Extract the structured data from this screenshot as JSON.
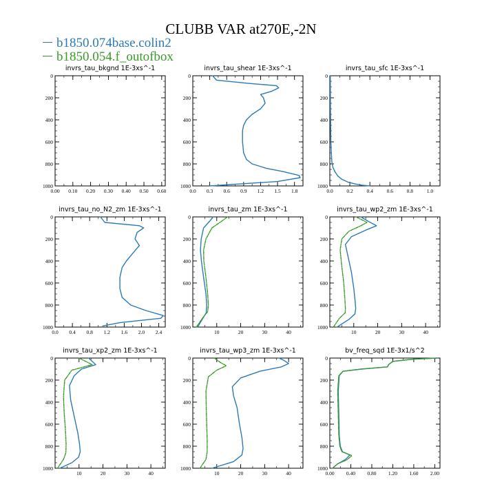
{
  "title": "CLUBB VAR at270E,-2N",
  "legend": [
    {
      "label": "b1850.074base.colin2",
      "color": "#2a7ab8"
    },
    {
      "label": "b1850.054.f_outofbox",
      "color": "#3a9a2a"
    }
  ],
  "chart_data": [
    {
      "type": "line",
      "title": "invrs_tau_bkgnd   1E-3xs^-1",
      "xlim": [
        0,
        0.62
      ],
      "ylim": [
        1000,
        0
      ],
      "xticks": [
        0,
        0.1,
        0.2,
        0.3,
        0.4,
        0.5,
        0.6
      ],
      "xtick_labels": [
        "0.00",
        "0.10",
        "0.20",
        "0.30",
        "0.40",
        "0.50",
        "0.60"
      ],
      "yticks": [
        0,
        200,
        400,
        600,
        800,
        1000
      ],
      "series": []
    },
    {
      "type": "line",
      "title": "invrs_tau_shear   1E-3xs^-1",
      "xlim": [
        0,
        1.95
      ],
      "ylim": [
        1000,
        0
      ],
      "xticks": [
        0,
        0.3,
        0.6,
        0.9,
        1.2,
        1.5,
        1.8
      ],
      "xtick_labels": [
        "0.0",
        "0.3",
        "0.6",
        "0.9",
        "1.2",
        "1.5",
        "1.8"
      ],
      "yticks": [
        0,
        200,
        400,
        600,
        800,
        1000
      ],
      "series": [
        {
          "color": "#2a7ab8",
          "x": [
            0.35,
            0.42,
            1.0,
            1.48,
            1.52,
            1.4,
            1.2,
            1.25,
            1.28,
            1.2,
            1.05,
            0.95,
            0.9,
            0.88,
            0.88,
            0.9,
            0.95,
            1.05,
            1.3,
            1.6,
            1.88,
            1.9,
            1.5,
            0.3
          ],
          "y": [
            0,
            40,
            70,
            90,
            110,
            140,
            170,
            200,
            250,
            300,
            350,
            400,
            450,
            500,
            600,
            700,
            760,
            800,
            840,
            870,
            905,
            925,
            960,
            1000
          ]
        }
      ]
    },
    {
      "type": "line",
      "title": "invrs_tau_sfc   1E-3xs^-1",
      "xlim": [
        0,
        1.1
      ],
      "ylim": [
        1000,
        0
      ],
      "xticks": [
        0,
        0.2,
        0.4,
        0.6,
        0.8,
        1.0
      ],
      "xtick_labels": [
        "0.0",
        "0.2",
        "0.4",
        "0.6",
        "0.8",
        "1.0"
      ],
      "yticks": [
        0,
        200,
        400,
        600,
        800,
        1000
      ],
      "series": [
        {
          "color": "#2a7ab8",
          "x": [
            0.005,
            0.006,
            0.008,
            0.01,
            0.015,
            0.02,
            0.03,
            0.05,
            0.08,
            0.12,
            0.18,
            0.25,
            0.32,
            0.4
          ],
          "y": [
            0,
            300,
            500,
            600,
            700,
            780,
            830,
            870,
            910,
            940,
            965,
            982,
            993,
            1000
          ]
        }
      ]
    },
    {
      "type": "line",
      "title": "invrs_tau_no_N2_zm   1E-3xs^-1",
      "xlim": [
        0,
        2.55
      ],
      "ylim": [
        1000,
        0
      ],
      "xticks": [
        0,
        0.4,
        0.8,
        1.2,
        1.6,
        2.0,
        2.4
      ],
      "xtick_labels": [
        "0.0",
        "0.4",
        "0.8",
        "1.2",
        "1.6",
        "2.0",
        "2.4"
      ],
      "yticks": [
        0,
        200,
        400,
        600,
        800,
        1000
      ],
      "series": [
        {
          "color": "#2a7ab8",
          "x": [
            1.05,
            1.15,
            1.95,
            2.05,
            1.9,
            1.85,
            1.95,
            1.8,
            1.65,
            1.55,
            1.5,
            1.5,
            1.55,
            1.75,
            2.1,
            2.5,
            2.45,
            1.5,
            1.1
          ],
          "y": [
            0,
            50,
            80,
            100,
            140,
            200,
            260,
            330,
            400,
            460,
            550,
            650,
            730,
            800,
            850,
            895,
            920,
            960,
            990
          ]
        }
      ]
    },
    {
      "type": "line",
      "title": "invrs_tau_zm   1E-3xs^-1",
      "xlim": [
        0,
        46
      ],
      "ylim": [
        1000,
        0
      ],
      "xticks": [
        0,
        10,
        20,
        30,
        40
      ],
      "xtick_labels": [
        "",
        "10",
        "20",
        "30",
        "40"
      ],
      "yticks": [
        0,
        200,
        400,
        600,
        800,
        1000
      ],
      "series": [
        {
          "color": "#2a7ab8",
          "x": [
            8.5,
            7.0,
            4.5,
            3.5,
            3.2,
            3.6,
            4.5,
            5.5,
            5.8,
            5.6,
            4.2,
            2.0
          ],
          "y": [
            0,
            40,
            100,
            200,
            300,
            400,
            550,
            700,
            800,
            870,
            920,
            1000
          ]
        },
        {
          "color": "#3a9a2a",
          "dashed": true,
          "x": [
            14.5,
            12.0,
            8.0,
            5.5,
            4.5,
            4.6,
            5.5,
            6.2,
            6.5,
            6.2,
            4.0,
            1.5
          ],
          "y": [
            0,
            40,
            100,
            200,
            300,
            400,
            550,
            700,
            800,
            860,
            920,
            1000
          ]
        }
      ]
    },
    {
      "type": "line",
      "title": "invrs_tau_wp2_zm   1E-3xs^-1",
      "xlim": [
        0,
        46
      ],
      "ylim": [
        1000,
        0
      ],
      "xticks": [
        0,
        10,
        20,
        30,
        40
      ],
      "xtick_labels": [
        "",
        "10",
        "20",
        "30",
        "40"
      ],
      "yticks": [
        0,
        200,
        400,
        600,
        800,
        1000
      ],
      "series": [
        {
          "color": "#2a7ab8",
          "x": [
            13.0,
            16.0,
            19.5,
            15.0,
            9.0,
            6.5,
            7.5,
            9.0,
            10.0,
            10.5,
            10.8,
            10.5,
            8.0,
            3.0
          ],
          "y": [
            0,
            40,
            80,
            120,
            180,
            250,
            350,
            500,
            650,
            750,
            830,
            880,
            930,
            1000
          ]
        },
        {
          "color": "#3a9a2a",
          "dashed": true,
          "x": [
            11.0,
            15.5,
            13.0,
            8.0,
            5.0,
            4.3,
            5.0,
            5.8,
            6.3,
            6.5,
            6.4,
            4.0,
            1.5
          ],
          "y": [
            0,
            50,
            80,
            130,
            200,
            300,
            450,
            600,
            750,
            830,
            870,
            920,
            1000
          ]
        }
      ]
    },
    {
      "type": "line",
      "title": "invrs_tau_xp2_zm   1E-3xs^-1",
      "xlim": [
        0,
        46
      ],
      "ylim": [
        1000,
        0
      ],
      "xticks": [
        0,
        10,
        20,
        30,
        40
      ],
      "xtick_labels": [
        "",
        "10",
        "20",
        "30",
        "40"
      ],
      "yticks": [
        0,
        200,
        400,
        600,
        800,
        1000
      ],
      "series": [
        {
          "color": "#2a7ab8",
          "x": [
            14.0,
            17.0,
            11.0,
            8.0,
            6.0,
            6.5,
            8.0,
            9.5,
            10.2,
            10.5,
            9.8,
            7.0,
            2.0
          ],
          "y": [
            0,
            60,
            100,
            160,
            250,
            380,
            530,
            680,
            780,
            850,
            900,
            950,
            1000
          ]
        },
        {
          "color": "#3a9a2a",
          "dashed": true,
          "x": [
            10.0,
            15.5,
            7.0,
            4.0,
            3.5,
            3.8,
            4.3,
            4.6,
            4.5,
            3.5,
            1.0
          ],
          "y": [
            0,
            60,
            110,
            200,
            350,
            500,
            650,
            780,
            860,
            920,
            1000
          ]
        }
      ]
    },
    {
      "type": "line",
      "title": "invrs_tau_wp3_zm   1E-3xs^-1",
      "xlim": [
        0,
        46
      ],
      "ylim": [
        1000,
        0
      ],
      "xticks": [
        0,
        10,
        20,
        30,
        40
      ],
      "xtick_labels": [
        "",
        "10",
        "20",
        "30",
        "40"
      ],
      "yticks": [
        0,
        200,
        400,
        600,
        800,
        1000
      ],
      "series": [
        {
          "color": "#2a7ab8",
          "x": [
            36.0,
            38.0,
            40.0,
            37.0,
            28.0,
            20.0,
            16.5,
            17.0,
            18.5,
            19.5,
            20.5,
            21.0,
            20.5,
            17.0,
            8.0
          ],
          "y": [
            0,
            20,
            50,
            80,
            120,
            180,
            260,
            340,
            450,
            600,
            720,
            820,
            880,
            940,
            1000
          ]
        },
        {
          "color": "#3a9a2a",
          "dashed": true,
          "x": [
            9.0,
            11.5,
            14.0,
            10.0,
            6.5,
            5.5,
            5.6,
            5.8,
            6.0,
            6.0,
            5.5,
            3.0
          ],
          "y": [
            0,
            40,
            70,
            110,
            170,
            300,
            450,
            600,
            750,
            850,
            920,
            1000
          ]
        }
      ]
    },
    {
      "type": "line",
      "title": "bv_freq_sqd   1E-3x1/s^2",
      "xlim": [
        0,
        2.1
      ],
      "ylim": [
        1000,
        0
      ],
      "xticks": [
        0,
        0.4,
        0.8,
        1.2,
        1.6,
        2.0
      ],
      "xtick_labels": [
        "0.00",
        "0.40",
        "0.80",
        "1.20",
        "1.60",
        "2.00"
      ],
      "yticks": [
        0,
        200,
        400,
        600,
        800,
        1000
      ],
      "series": [
        {
          "color": "#2a7ab8",
          "x": [
            2.05,
            1.6,
            1.2,
            1.12,
            1.1,
            0.6,
            0.25,
            0.18,
            0.16,
            0.17,
            0.18,
            0.2,
            0.24,
            0.38,
            0.3,
            0.15,
            0.05
          ],
          "y": [
            0,
            10,
            30,
            60,
            80,
            100,
            120,
            160,
            300,
            500,
            700,
            800,
            850,
            880,
            920,
            960,
            1000
          ]
        },
        {
          "color": "#3a9a2a",
          "dashed": true,
          "x": [
            2.05,
            1.6,
            1.2,
            1.12,
            1.1,
            0.6,
            0.25,
            0.17,
            0.15,
            0.16,
            0.17,
            0.19,
            0.23,
            0.42,
            0.32,
            0.15,
            0.05
          ],
          "y": [
            0,
            10,
            30,
            60,
            80,
            100,
            120,
            160,
            300,
            500,
            700,
            800,
            850,
            885,
            925,
            960,
            1000
          ]
        }
      ]
    }
  ]
}
